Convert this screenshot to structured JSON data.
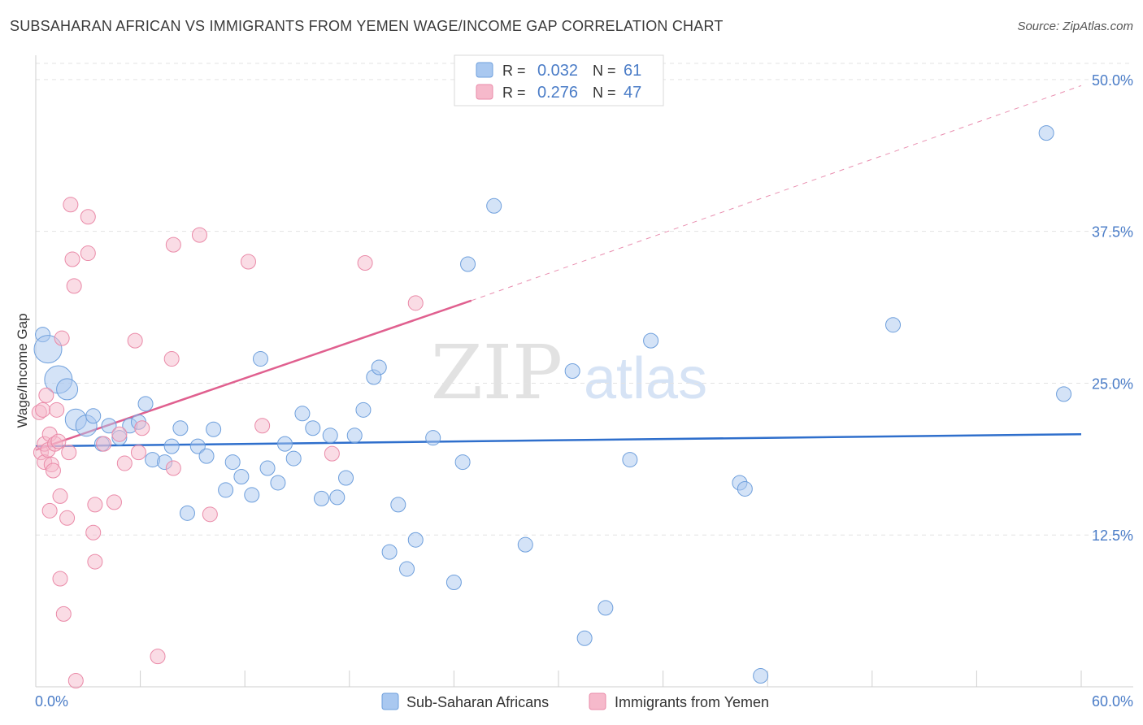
{
  "title": "SUBSAHARAN AFRICAN VS IMMIGRANTS FROM YEMEN WAGE/INCOME GAP CORRELATION CHART",
  "source": "Source: ZipAtlas.com",
  "watermark": {
    "zip": "ZIP",
    "atlas": "atlas"
  },
  "colors": {
    "blue_fill": "#a9c8f0",
    "blue_stroke": "#6e9fdc",
    "blue_line": "#2f6fcc",
    "pink_fill": "#f6b9cb",
    "pink_stroke": "#ea8aa8",
    "pink_line": "#e0608f",
    "axis_label": "#4a7cc7",
    "grid": "#e3e3e3"
  },
  "legend": [
    {
      "r_label": "R =",
      "r_value": "0.032",
      "n_label": "N =",
      "n_value": "61"
    },
    {
      "r_label": "R =",
      "r_value": "0.276",
      "n_label": "N =",
      "n_value": "47"
    }
  ],
  "chart_data": {
    "type": "scatter",
    "title": "SUBSAHARAN AFRICAN VS IMMIGRANTS FROM YEMEN WAGE/INCOME GAP CORRELATION CHART",
    "xlabel": "",
    "ylabel": "Wage/Income Gap",
    "xlim": [
      0,
      60
    ],
    "ylim": [
      0,
      52
    ],
    "x_tick_labels": {
      "min": "0.0%",
      "max": "60.0%"
    },
    "y_ticks": [
      12.5,
      25.0,
      37.5,
      50.0
    ],
    "y_tick_labels": [
      "12.5%",
      "25.0%",
      "37.5%",
      "50.0%"
    ],
    "legend_position": "bottom-center",
    "series": [
      {
        "name": "Sub-Saharan Africans",
        "color": "blue",
        "trend": {
          "x0": 0,
          "y0": 19.8,
          "x1": 60,
          "y1": 20.8,
          "dashed_extension": false
        },
        "points": [
          {
            "x": 0.4,
            "y": 29.0,
            "s": 3
          },
          {
            "x": 0.7,
            "y": 27.8,
            "s": 2
          },
          {
            "x": 1.3,
            "y": 25.3,
            "s": 2
          },
          {
            "x": 1.8,
            "y": 24.5,
            "s": 1
          },
          {
            "x": 2.3,
            "y": 22.0,
            "s": 1
          },
          {
            "x": 2.9,
            "y": 21.5,
            "s": 1
          },
          {
            "x": 3.3,
            "y": 22.3,
            "s": 0
          },
          {
            "x": 4.2,
            "y": 21.5,
            "s": 0
          },
          {
            "x": 3.8,
            "y": 20.0,
            "s": 0
          },
          {
            "x": 4.8,
            "y": 20.5,
            "s": 0
          },
          {
            "x": 5.4,
            "y": 21.5,
            "s": 0
          },
          {
            "x": 5.9,
            "y": 21.8,
            "s": 0
          },
          {
            "x": 6.3,
            "y": 23.3,
            "s": 0
          },
          {
            "x": 6.7,
            "y": 18.7,
            "s": 0
          },
          {
            "x": 7.4,
            "y": 18.5,
            "s": 0
          },
          {
            "x": 7.8,
            "y": 19.8,
            "s": 0
          },
          {
            "x": 8.3,
            "y": 21.3,
            "s": 0
          },
          {
            "x": 8.7,
            "y": 14.3,
            "s": 0
          },
          {
            "x": 9.3,
            "y": 19.8,
            "s": 0
          },
          {
            "x": 9.8,
            "y": 19.0,
            "s": 0
          },
          {
            "x": 10.2,
            "y": 21.2,
            "s": 0
          },
          {
            "x": 10.9,
            "y": 16.2,
            "s": 0
          },
          {
            "x": 11.3,
            "y": 18.5,
            "s": 0
          },
          {
            "x": 11.8,
            "y": 17.3,
            "s": 0
          },
          {
            "x": 12.4,
            "y": 15.8,
            "s": 0
          },
          {
            "x": 12.9,
            "y": 27.0,
            "s": 0
          },
          {
            "x": 13.3,
            "y": 18.0,
            "s": 0
          },
          {
            "x": 13.9,
            "y": 16.8,
            "s": 0
          },
          {
            "x": 14.3,
            "y": 20.0,
            "s": 0
          },
          {
            "x": 14.8,
            "y": 18.8,
            "s": 0
          },
          {
            "x": 15.3,
            "y": 22.5,
            "s": 0
          },
          {
            "x": 15.9,
            "y": 21.3,
            "s": 0
          },
          {
            "x": 16.4,
            "y": 15.5,
            "s": 0
          },
          {
            "x": 16.9,
            "y": 20.7,
            "s": 0
          },
          {
            "x": 17.3,
            "y": 15.6,
            "s": 0
          },
          {
            "x": 17.8,
            "y": 17.2,
            "s": 0
          },
          {
            "x": 18.3,
            "y": 20.7,
            "s": 0
          },
          {
            "x": 18.8,
            "y": 22.8,
            "s": 0
          },
          {
            "x": 19.4,
            "y": 25.5,
            "s": 0
          },
          {
            "x": 19.7,
            "y": 26.3,
            "s": 0
          },
          {
            "x": 20.3,
            "y": 11.1,
            "s": 0
          },
          {
            "x": 20.8,
            "y": 15.0,
            "s": 0
          },
          {
            "x": 21.3,
            "y": 9.7,
            "s": 0
          },
          {
            "x": 21.8,
            "y": 12.1,
            "s": 0
          },
          {
            "x": 22.8,
            "y": 20.5,
            "s": 0
          },
          {
            "x": 24.0,
            "y": 8.6,
            "s": 0
          },
          {
            "x": 24.5,
            "y": 18.5,
            "s": 0
          },
          {
            "x": 24.8,
            "y": 34.8,
            "s": 0
          },
          {
            "x": 26.3,
            "y": 39.6,
            "s": 0
          },
          {
            "x": 28.1,
            "y": 11.7,
            "s": 0
          },
          {
            "x": 30.8,
            "y": 26.0,
            "s": 0
          },
          {
            "x": 31.5,
            "y": 4.0,
            "s": 0
          },
          {
            "x": 32.7,
            "y": 6.5,
            "s": 0
          },
          {
            "x": 34.1,
            "y": 18.7,
            "s": 0
          },
          {
            "x": 35.3,
            "y": 28.5,
            "s": 0
          },
          {
            "x": 40.4,
            "y": 16.8,
            "s": 0
          },
          {
            "x": 40.7,
            "y": 16.3,
            "s": 0
          },
          {
            "x": 41.6,
            "y": 0.9,
            "s": 0
          },
          {
            "x": 49.2,
            "y": 29.8,
            "s": 0
          },
          {
            "x": 58.0,
            "y": 45.6,
            "s": 0
          },
          {
            "x": 59.0,
            "y": 24.1,
            "s": 0
          }
        ]
      },
      {
        "name": "Immigrants from Yemen",
        "color": "pink",
        "trend": {
          "x0": 0,
          "y0": 19.5,
          "x1": 25,
          "y1": 31.8,
          "x2": 60,
          "y2": 49.5,
          "dashed_extension": true
        },
        "points": [
          {
            "x": 0.2,
            "y": 22.6,
            "s": 0
          },
          {
            "x": 0.3,
            "y": 19.3,
            "s": 0
          },
          {
            "x": 0.4,
            "y": 22.8,
            "s": 0
          },
          {
            "x": 0.5,
            "y": 20.0,
            "s": 0
          },
          {
            "x": 0.5,
            "y": 18.5,
            "s": 0
          },
          {
            "x": 0.6,
            "y": 24.0,
            "s": 0
          },
          {
            "x": 0.7,
            "y": 19.5,
            "s": 0
          },
          {
            "x": 0.8,
            "y": 20.8,
            "s": 0
          },
          {
            "x": 0.8,
            "y": 14.5,
            "s": 0
          },
          {
            "x": 0.9,
            "y": 18.3,
            "s": 0
          },
          {
            "x": 1.0,
            "y": 17.8,
            "s": 0
          },
          {
            "x": 1.1,
            "y": 20.0,
            "s": 0
          },
          {
            "x": 1.2,
            "y": 22.8,
            "s": 0
          },
          {
            "x": 1.3,
            "y": 20.2,
            "s": 0
          },
          {
            "x": 1.4,
            "y": 15.7,
            "s": 0
          },
          {
            "x": 1.4,
            "y": 8.9,
            "s": 0
          },
          {
            "x": 1.5,
            "y": 28.7,
            "s": 0
          },
          {
            "x": 1.6,
            "y": 6.0,
            "s": 0
          },
          {
            "x": 1.8,
            "y": 13.9,
            "s": 0
          },
          {
            "x": 1.9,
            "y": 19.3,
            "s": 0
          },
          {
            "x": 2.0,
            "y": 39.7,
            "s": 0
          },
          {
            "x": 2.1,
            "y": 35.2,
            "s": 0
          },
          {
            "x": 2.2,
            "y": 33.0,
            "s": 0
          },
          {
            "x": 2.3,
            "y": 0.5,
            "s": 0
          },
          {
            "x": 3.0,
            "y": 38.7,
            "s": 0
          },
          {
            "x": 3.0,
            "y": 35.7,
            "s": 0
          },
          {
            "x": 3.3,
            "y": 12.7,
            "s": 0
          },
          {
            "x": 3.4,
            "y": 10.3,
            "s": 0
          },
          {
            "x": 3.4,
            "y": 15.0,
            "s": 0
          },
          {
            "x": 3.9,
            "y": 20.0,
            "s": 0
          },
          {
            "x": 4.5,
            "y": 15.2,
            "s": 0
          },
          {
            "x": 4.8,
            "y": 20.8,
            "s": 0
          },
          {
            "x": 5.1,
            "y": 18.4,
            "s": 0
          },
          {
            "x": 5.7,
            "y": 28.5,
            "s": 0
          },
          {
            "x": 5.9,
            "y": 19.3,
            "s": 0
          },
          {
            "x": 6.1,
            "y": 21.3,
            "s": 0
          },
          {
            "x": 7.0,
            "y": 2.5,
            "s": 0
          },
          {
            "x": 7.8,
            "y": 27.0,
            "s": 0
          },
          {
            "x": 7.9,
            "y": 36.4,
            "s": 0
          },
          {
            "x": 7.9,
            "y": 18.0,
            "s": 0
          },
          {
            "x": 9.4,
            "y": 37.2,
            "s": 0
          },
          {
            "x": 10.0,
            "y": 14.2,
            "s": 0
          },
          {
            "x": 12.2,
            "y": 35.0,
            "s": 0
          },
          {
            "x": 13.0,
            "y": 21.5,
            "s": 0
          },
          {
            "x": 17.0,
            "y": 19.2,
            "s": 0
          },
          {
            "x": 18.9,
            "y": 34.9,
            "s": 0
          },
          {
            "x": 21.8,
            "y": 31.6,
            "s": 0
          }
        ]
      }
    ]
  }
}
